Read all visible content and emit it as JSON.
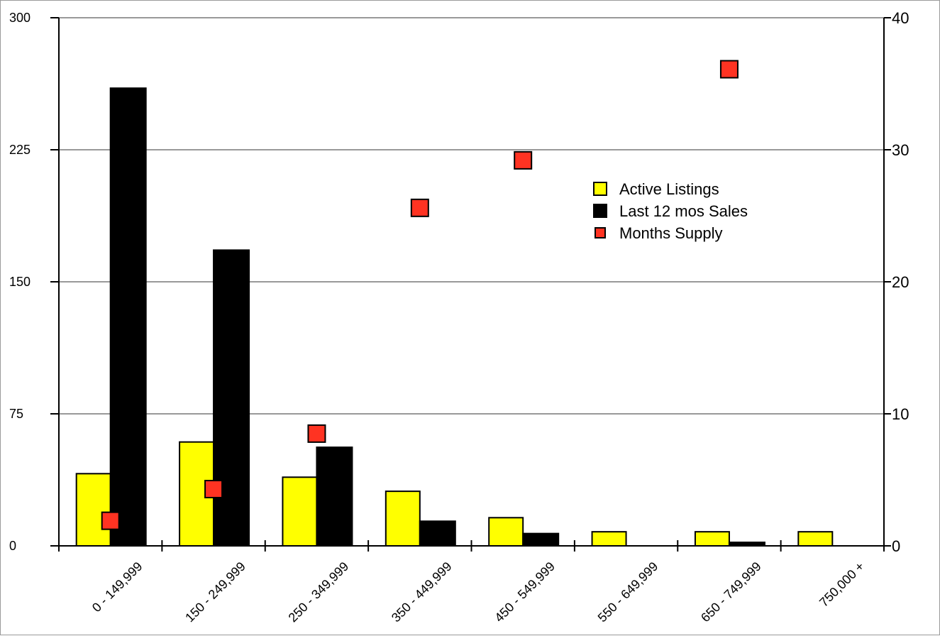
{
  "chart_data": {
    "type": "bar",
    "title": "",
    "xlabel": "",
    "ylabel": "",
    "categories": [
      "0 - 149,999",
      "150 - 249,999",
      "250 - 349,999",
      "350 - 449,999",
      "450 - 549,999",
      "550 - 649,999",
      "650 - 749,999",
      "750,000 +"
    ],
    "series": [
      {
        "name": "Active Listings",
        "type": "bar",
        "axis": "left",
        "color": "#ffff00",
        "values": [
          41,
          59,
          39,
          31,
          16,
          8,
          8,
          8
        ]
      },
      {
        "name": "Last 12 mos Sales",
        "type": "bar",
        "axis": "left",
        "color": "#000000",
        "values": [
          260,
          168,
          56,
          14,
          7,
          0,
          2,
          0
        ]
      },
      {
        "name": "Months Supply",
        "type": "scatter",
        "axis": "right",
        "color": "#ff3322",
        "values": [
          1.9,
          4.3,
          8.5,
          25.6,
          29.2,
          null,
          36.1,
          null
        ]
      }
    ],
    "ylim": [
      0,
      300
    ],
    "yticks": [
      "0",
      "75",
      "150",
      "225",
      "300"
    ],
    "y2lim": [
      0,
      40
    ],
    "y2ticks": [
      "0",
      "10",
      "20",
      "30",
      "40"
    ],
    "grid": true,
    "legend": {
      "position": "upper-right",
      "items": [
        "Active Listings",
        "Last 12 mos Sales",
        "Months Supply"
      ]
    },
    "colors": {
      "gridline": "#999999",
      "axis": "#000000",
      "frame": "#9a9a9a",
      "marker_stroke": "#000000"
    }
  }
}
